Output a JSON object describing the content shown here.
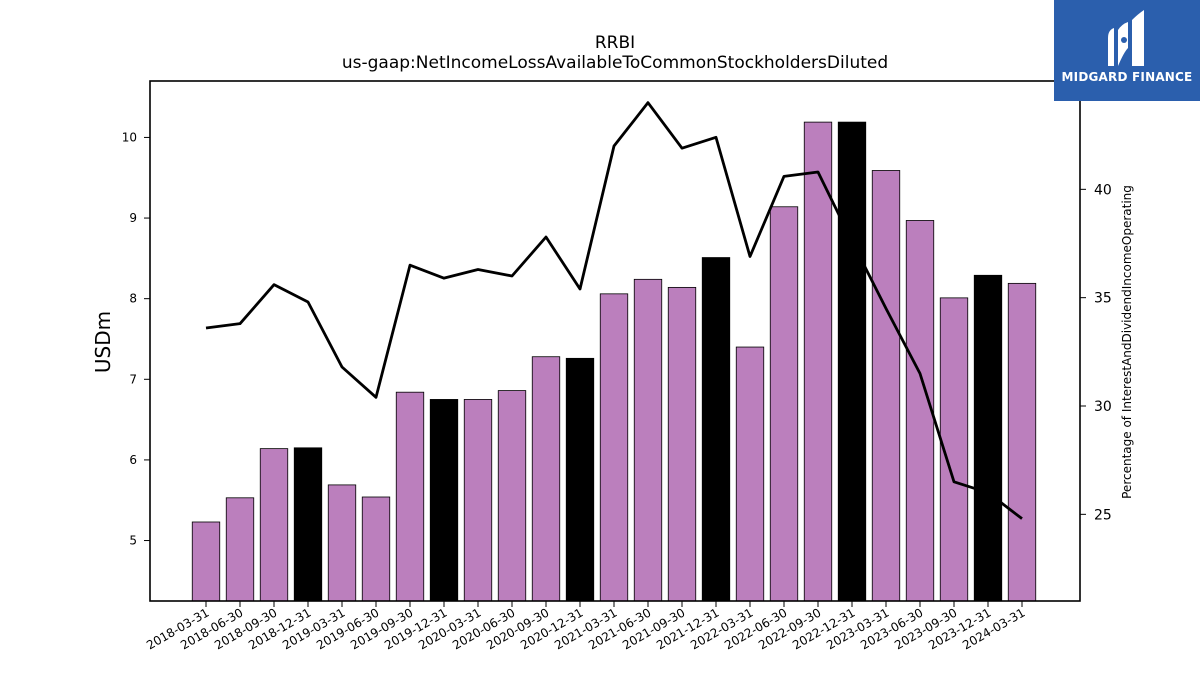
{
  "brand": {
    "name": "MIDGARD FINANCE",
    "bg_color": "#2b5fad"
  },
  "chart_data": {
    "type": "bar",
    "title": "RRBI",
    "subtitle": "us-gaap:NetIncomeLossAvailableToCommonStockholdersDiluted",
    "ylabel": "USDm",
    "y2label": "Percentage of InterestAndDividendIncomeOperating",
    "ylim": [
      4.25,
      10.7
    ],
    "y2lim": [
      21.0,
      45.0
    ],
    "yticks": [
      5,
      6,
      7,
      8,
      9,
      10
    ],
    "y2ticks": [
      25,
      30,
      35,
      40
    ],
    "categories": [
      "2018-03-31",
      "2018-06-30",
      "2018-09-30",
      "2018-12-31",
      "2019-03-31",
      "2019-06-30",
      "2019-09-30",
      "2019-12-31",
      "2020-03-31",
      "2020-06-30",
      "2020-09-30",
      "2020-12-31",
      "2021-03-31",
      "2021-06-30",
      "2021-09-30",
      "2021-12-31",
      "2022-03-31",
      "2022-06-30",
      "2022-09-30",
      "2022-12-31",
      "2023-03-31",
      "2023-06-30",
      "2023-09-30",
      "2023-12-31",
      "2024-03-31"
    ],
    "series": [
      {
        "kind": "bar",
        "axis": "left",
        "values": [
          5.23,
          5.53,
          6.14,
          6.15,
          5.69,
          5.54,
          6.84,
          6.75,
          6.75,
          6.86,
          7.28,
          7.26,
          8.06,
          8.24,
          8.14,
          8.51,
          7.4,
          9.14,
          10.19,
          10.19,
          9.59,
          8.97,
          8.01,
          8.29,
          8.19
        ],
        "colors": [
          "#bb7fbd",
          "#bb7fbd",
          "#bb7fbd",
          "#000000",
          "#bb7fbd",
          "#bb7fbd",
          "#bb7fbd",
          "#000000",
          "#bb7fbd",
          "#bb7fbd",
          "#bb7fbd",
          "#000000",
          "#bb7fbd",
          "#bb7fbd",
          "#bb7fbd",
          "#000000",
          "#bb7fbd",
          "#bb7fbd",
          "#bb7fbd",
          "#000000",
          "#bb7fbd",
          "#bb7fbd",
          "#bb7fbd",
          "#000000",
          "#bb7fbd"
        ]
      },
      {
        "kind": "line",
        "axis": "right",
        "color": "#000000",
        "values": [
          33.6,
          33.8,
          35.6,
          34.8,
          31.8,
          30.4,
          36.5,
          35.9,
          36.3,
          36.0,
          37.8,
          35.4,
          42.0,
          44.0,
          41.9,
          42.4,
          36.9,
          40.6,
          40.8,
          37.6,
          34.5,
          31.5,
          26.5,
          26.0,
          24.8
        ]
      }
    ],
    "grid": false,
    "legend": "none"
  }
}
